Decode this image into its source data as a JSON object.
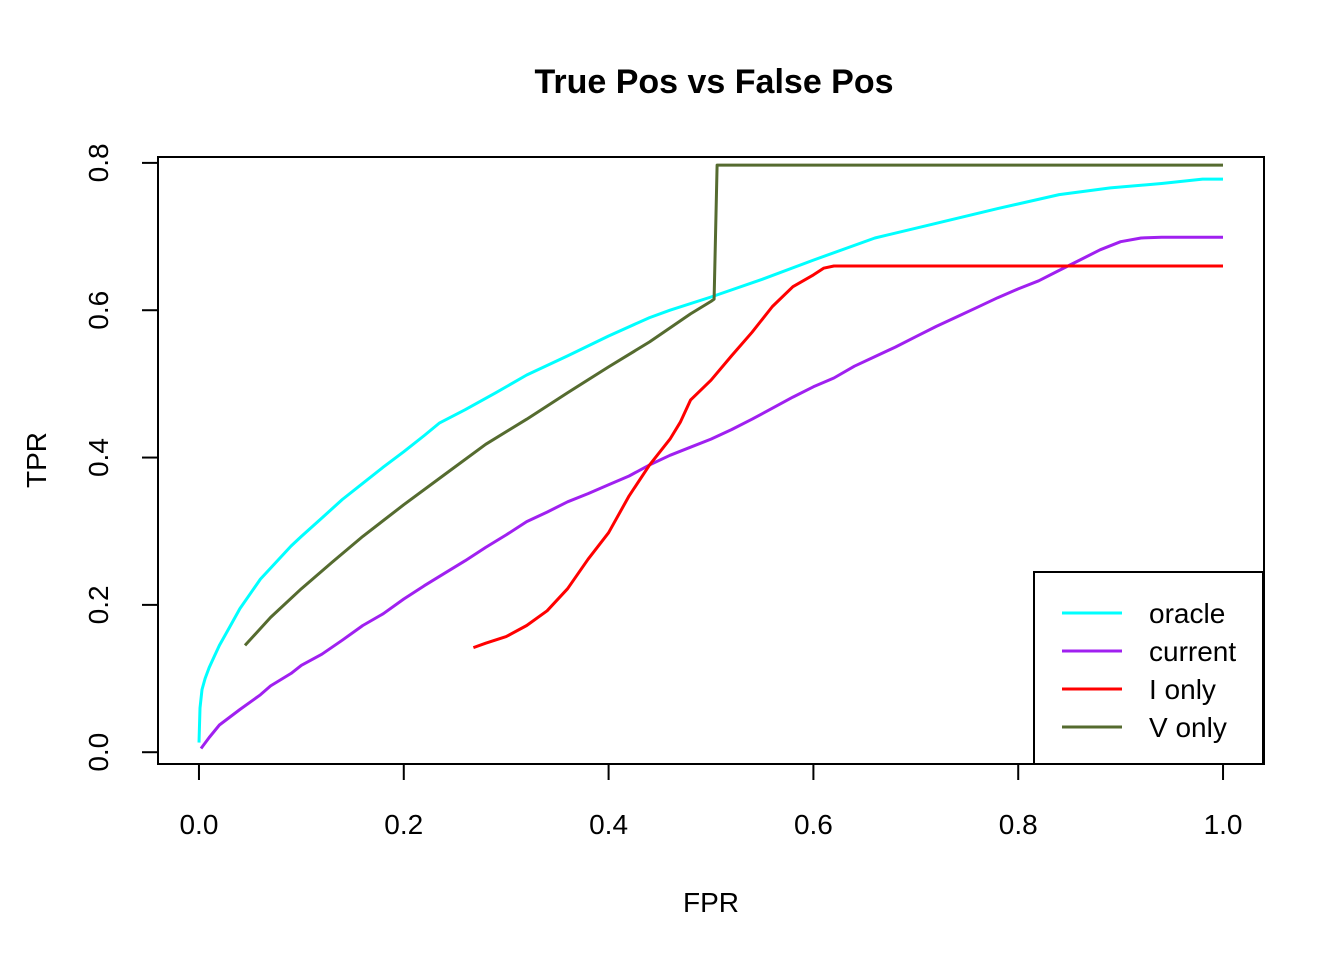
{
  "chart_data": {
    "type": "line",
    "title": "True Pos vs False Pos",
    "xlabel": "FPR",
    "ylabel": "TPR",
    "xlim": [
      -0.04,
      1.04
    ],
    "ylim": [
      -0.016,
      0.808
    ],
    "x_ticks": [
      0.0,
      0.2,
      0.4,
      0.6,
      0.8,
      1.0
    ],
    "x_tick_labels": [
      "0.0",
      "0.2",
      "0.4",
      "0.6",
      "0.8",
      "1.0"
    ],
    "y_ticks": [
      0.0,
      0.2,
      0.4,
      0.6,
      0.8
    ],
    "y_tick_labels": [
      "0.0",
      "0.2",
      "0.4",
      "0.6",
      "0.8"
    ],
    "grid": false,
    "legend_position": "bottom-right",
    "series": [
      {
        "name": "oracle",
        "color": "#00FFFF",
        "points": [
          [
            0.0,
            0.013
          ],
          [
            0.001,
            0.06
          ],
          [
            0.003,
            0.085
          ],
          [
            0.006,
            0.1
          ],
          [
            0.01,
            0.115
          ],
          [
            0.015,
            0.13
          ],
          [
            0.02,
            0.145
          ],
          [
            0.03,
            0.17
          ],
          [
            0.04,
            0.195
          ],
          [
            0.05,
            0.215
          ],
          [
            0.06,
            0.235
          ],
          [
            0.07,
            0.25
          ],
          [
            0.08,
            0.265
          ],
          [
            0.09,
            0.28
          ],
          [
            0.1,
            0.293
          ],
          [
            0.12,
            0.318
          ],
          [
            0.14,
            0.343
          ],
          [
            0.16,
            0.365
          ],
          [
            0.18,
            0.387
          ],
          [
            0.2,
            0.408
          ],
          [
            0.22,
            0.43
          ],
          [
            0.235,
            0.447
          ],
          [
            0.26,
            0.465
          ],
          [
            0.29,
            0.488
          ],
          [
            0.32,
            0.512
          ],
          [
            0.36,
            0.538
          ],
          [
            0.4,
            0.565
          ],
          [
            0.44,
            0.59
          ],
          [
            0.46,
            0.6
          ],
          [
            0.5,
            0.618
          ],
          [
            0.55,
            0.642
          ],
          [
            0.6,
            0.668
          ],
          [
            0.66,
            0.698
          ],
          [
            0.72,
            0.718
          ],
          [
            0.78,
            0.738
          ],
          [
            0.84,
            0.757
          ],
          [
            0.89,
            0.766
          ],
          [
            0.94,
            0.772
          ],
          [
            0.98,
            0.778
          ],
          [
            1.0,
            0.778
          ]
        ]
      },
      {
        "name": "current",
        "color": "#A020F0",
        "points": [
          [
            0.002,
            0.005
          ],
          [
            0.01,
            0.02
          ],
          [
            0.02,
            0.037
          ],
          [
            0.04,
            0.058
          ],
          [
            0.06,
            0.078
          ],
          [
            0.07,
            0.09
          ],
          [
            0.09,
            0.107
          ],
          [
            0.1,
            0.118
          ],
          [
            0.12,
            0.133
          ],
          [
            0.14,
            0.152
          ],
          [
            0.16,
            0.172
          ],
          [
            0.18,
            0.188
          ],
          [
            0.2,
            0.208
          ],
          [
            0.22,
            0.226
          ],
          [
            0.24,
            0.243
          ],
          [
            0.26,
            0.26
          ],
          [
            0.28,
            0.278
          ],
          [
            0.3,
            0.295
          ],
          [
            0.32,
            0.313
          ],
          [
            0.34,
            0.326
          ],
          [
            0.36,
            0.34
          ],
          [
            0.38,
            0.351
          ],
          [
            0.4,
            0.363
          ],
          [
            0.42,
            0.375
          ],
          [
            0.44,
            0.39
          ],
          [
            0.46,
            0.403
          ],
          [
            0.48,
            0.414
          ],
          [
            0.5,
            0.425
          ],
          [
            0.52,
            0.438
          ],
          [
            0.54,
            0.452
          ],
          [
            0.56,
            0.467
          ],
          [
            0.58,
            0.482
          ],
          [
            0.6,
            0.496
          ],
          [
            0.62,
            0.508
          ],
          [
            0.64,
            0.524
          ],
          [
            0.66,
            0.537
          ],
          [
            0.68,
            0.55
          ],
          [
            0.7,
            0.564
          ],
          [
            0.72,
            0.578
          ],
          [
            0.74,
            0.591
          ],
          [
            0.76,
            0.604
          ],
          [
            0.78,
            0.617
          ],
          [
            0.8,
            0.629
          ],
          [
            0.82,
            0.64
          ],
          [
            0.84,
            0.654
          ],
          [
            0.86,
            0.668
          ],
          [
            0.88,
            0.682
          ],
          [
            0.9,
            0.693
          ],
          [
            0.92,
            0.698
          ],
          [
            0.94,
            0.699
          ],
          [
            1.0,
            0.699
          ]
        ]
      },
      {
        "name": "I only",
        "color": "#FF0000",
        "points": [
          [
            0.268,
            0.142
          ],
          [
            0.28,
            0.148
          ],
          [
            0.3,
            0.157
          ],
          [
            0.32,
            0.172
          ],
          [
            0.34,
            0.192
          ],
          [
            0.36,
            0.222
          ],
          [
            0.38,
            0.262
          ],
          [
            0.4,
            0.298
          ],
          [
            0.42,
            0.348
          ],
          [
            0.44,
            0.39
          ],
          [
            0.46,
            0.425
          ],
          [
            0.47,
            0.448
          ],
          [
            0.48,
            0.478
          ],
          [
            0.5,
            0.505
          ],
          [
            0.52,
            0.538
          ],
          [
            0.54,
            0.57
          ],
          [
            0.56,
            0.605
          ],
          [
            0.58,
            0.632
          ],
          [
            0.6,
            0.648
          ],
          [
            0.61,
            0.657
          ],
          [
            0.62,
            0.66
          ],
          [
            1.0,
            0.66
          ]
        ]
      },
      {
        "name": "V only",
        "color": "#556B2F",
        "points": [
          [
            0.045,
            0.145
          ],
          [
            0.07,
            0.183
          ],
          [
            0.1,
            0.222
          ],
          [
            0.13,
            0.258
          ],
          [
            0.16,
            0.293
          ],
          [
            0.2,
            0.336
          ],
          [
            0.24,
            0.377
          ],
          [
            0.28,
            0.418
          ],
          [
            0.32,
            0.452
          ],
          [
            0.36,
            0.488
          ],
          [
            0.4,
            0.523
          ],
          [
            0.44,
            0.557
          ],
          [
            0.48,
            0.595
          ],
          [
            0.5,
            0.612
          ],
          [
            0.503,
            0.615
          ],
          [
            0.506,
            0.797
          ],
          [
            1.0,
            0.797
          ]
        ]
      }
    ]
  }
}
